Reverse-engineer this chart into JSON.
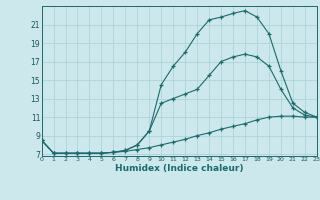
{
  "xlabel": "Humidex (Indice chaleur)",
  "bg_color": "#cce8ec",
  "grid_color": "#aad4da",
  "line_color": "#1a6b6b",
  "x_ticks": [
    0,
    1,
    2,
    3,
    4,
    5,
    6,
    7,
    8,
    9,
    10,
    11,
    12,
    13,
    14,
    15,
    16,
    17,
    18,
    19,
    20,
    21,
    22,
    23
  ],
  "y_ticks": [
    7,
    9,
    11,
    13,
    15,
    17,
    19,
    21
  ],
  "xlim": [
    0,
    23
  ],
  "ylim": [
    6.8,
    23.0
  ],
  "line1_x": [
    0,
    1,
    2,
    3,
    4,
    5,
    6,
    7,
    8,
    9,
    10,
    11,
    12,
    13,
    14,
    15,
    16,
    17,
    18,
    19,
    20,
    21,
    22,
    23
  ],
  "line1_y": [
    8.5,
    7.1,
    7.1,
    7.1,
    7.1,
    7.1,
    7.2,
    7.3,
    7.5,
    7.7,
    8.0,
    8.3,
    8.6,
    9.0,
    9.3,
    9.7,
    10.0,
    10.3,
    10.7,
    11.0,
    11.1,
    11.1,
    11.0,
    11.0
  ],
  "line2_x": [
    0,
    1,
    2,
    3,
    4,
    5,
    6,
    7,
    8,
    9,
    10,
    11,
    12,
    13,
    14,
    15,
    16,
    17,
    18,
    19,
    20,
    21,
    22,
    23
  ],
  "line2_y": [
    8.5,
    7.1,
    7.1,
    7.1,
    7.1,
    7.1,
    7.2,
    7.4,
    8.0,
    9.5,
    12.5,
    13.0,
    13.5,
    14.0,
    15.5,
    17.0,
    17.5,
    17.8,
    17.5,
    16.5,
    14.0,
    12.0,
    11.2,
    11.0
  ],
  "line3_x": [
    0,
    1,
    2,
    3,
    4,
    5,
    6,
    7,
    8,
    9,
    10,
    11,
    12,
    13,
    14,
    15,
    16,
    17,
    18,
    19,
    20,
    21,
    22,
    23
  ],
  "line3_y": [
    8.5,
    7.1,
    7.1,
    7.1,
    7.1,
    7.1,
    7.2,
    7.4,
    8.0,
    9.5,
    14.5,
    16.5,
    18.0,
    20.0,
    21.5,
    21.8,
    22.2,
    22.5,
    21.8,
    20.0,
    16.0,
    12.5,
    11.5,
    11.0
  ]
}
